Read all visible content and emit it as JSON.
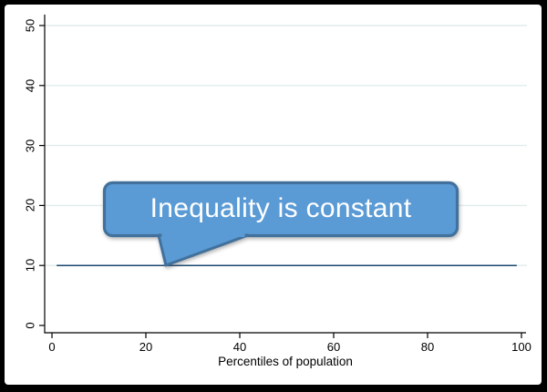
{
  "figure": {
    "frame_color": "#000000",
    "card_color": "#ffffff"
  },
  "chart_data": {
    "type": "line",
    "title": "",
    "xlabel": "Percentiles of population",
    "ylabel": "",
    "xlim": [
      0,
      100
    ],
    "ylim": [
      0,
      50
    ],
    "x_ticks": [
      0,
      20,
      40,
      60,
      80,
      100
    ],
    "y_ticks": [
      0,
      10,
      20,
      30,
      40,
      50
    ],
    "grid": "horizontal-light",
    "gridline_color": "#e1ecec",
    "axis_color": "#000000",
    "legend": "none",
    "series": [
      {
        "name": "inequality-line",
        "x": [
          1,
          99
        ],
        "values": [
          10,
          10
        ],
        "color": "#1a476f",
        "style": "solid-horizontal-line"
      }
    ],
    "annotation": {
      "text": "Inequality is constant",
      "shape": "rounded-rectangle-callout",
      "fill": "#5b9bd5",
      "border": "#41719c",
      "text_color": "#ffffff",
      "points_to": {
        "x": 24,
        "y": 10
      }
    }
  }
}
